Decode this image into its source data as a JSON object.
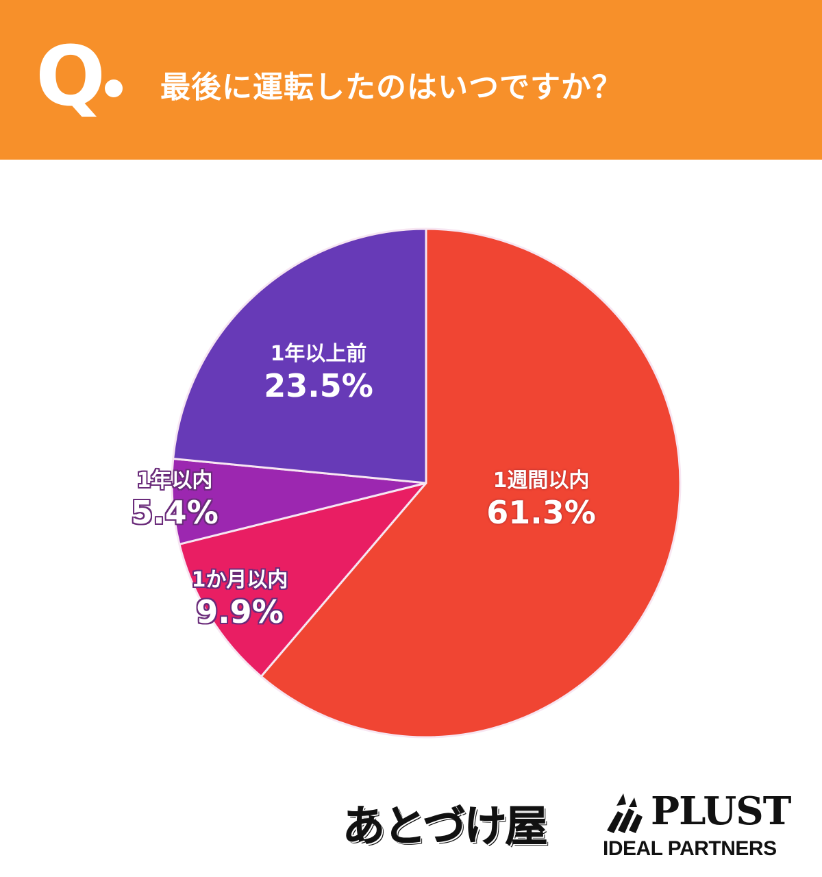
{
  "header": {
    "q_label": "Q",
    "title": "最後に運転したのはいつですか？",
    "background_color": "#F7902A"
  },
  "chart_data": {
    "type": "pie",
    "title": "最後に運転したのはいつですか？",
    "start_angle": "12 o'clock",
    "direction": "clockwise",
    "slices": [
      {
        "label": "1週間以内",
        "value": 61.3,
        "display": "61.3%",
        "color": "#F04533"
      },
      {
        "label": "1か月以内",
        "value": 9.9,
        "display": "9.9%",
        "color": "#E91E63"
      },
      {
        "label": "1年以内",
        "value": 5.4,
        "display": "5.4%",
        "color": "#9C27B0"
      },
      {
        "label": "1年以上前",
        "value": 23.5,
        "display": "23.5%",
        "color": "#673AB7"
      }
    ],
    "legend": "none (labels placed on slices)",
    "units": "%"
  },
  "footer": {
    "logos": [
      {
        "name": "あとづけ屋"
      },
      {
        "name": "PLUST",
        "subtitle": "IDEAL PARTNERS"
      }
    ]
  }
}
